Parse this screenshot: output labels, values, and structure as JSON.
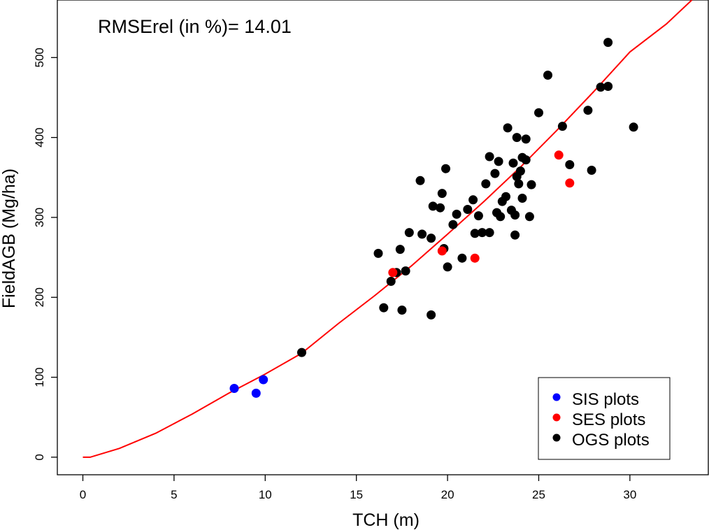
{
  "chart_data": {
    "type": "scatter",
    "xlabel": "TCH (m)",
    "ylabel": "FieldAGB (Mg/ha)",
    "annotation": "RMSErel (in %)= 14.01",
    "xlim": [
      -1.4,
      34.3
    ],
    "ylim": [
      -22,
      572
    ],
    "xticks": [
      0,
      5,
      10,
      15,
      20,
      25,
      30
    ],
    "yticks": [
      0,
      100,
      200,
      300,
      400,
      500
    ],
    "grid": false,
    "legend_position": "bottom-right",
    "series": [
      {
        "name": "SIS plots",
        "color": "#0000ff",
        "points": [
          [
            8.3,
            86
          ],
          [
            9.5,
            80
          ],
          [
            9.9,
            97
          ]
        ]
      },
      {
        "name": "SES plots",
        "color": "#ff0000",
        "points": [
          [
            17.0,
            231
          ],
          [
            19.7,
            258
          ],
          [
            21.5,
            249
          ],
          [
            26.1,
            378
          ],
          [
            26.7,
            343
          ]
        ]
      },
      {
        "name": "OGS plots",
        "color": "#000000",
        "points": [
          [
            12.0,
            131
          ],
          [
            16.2,
            255
          ],
          [
            16.5,
            187
          ],
          [
            16.9,
            220
          ],
          [
            17.2,
            231
          ],
          [
            17.4,
            260
          ],
          [
            17.5,
            184
          ],
          [
            17.7,
            233
          ],
          [
            17.9,
            281
          ],
          [
            18.5,
            346
          ],
          [
            18.6,
            279
          ],
          [
            19.1,
            274
          ],
          [
            19.1,
            178
          ],
          [
            19.2,
            314
          ],
          [
            19.6,
            312
          ],
          [
            19.7,
            330
          ],
          [
            19.8,
            261
          ],
          [
            19.9,
            361
          ],
          [
            20.0,
            238
          ],
          [
            20.3,
            291
          ],
          [
            20.5,
            304
          ],
          [
            20.8,
            249
          ],
          [
            21.1,
            310
          ],
          [
            21.4,
            322
          ],
          [
            21.5,
            280
          ],
          [
            21.7,
            302
          ],
          [
            21.9,
            281
          ],
          [
            22.1,
            342
          ],
          [
            22.3,
            281
          ],
          [
            22.3,
            376
          ],
          [
            22.6,
            355
          ],
          [
            22.7,
            306
          ],
          [
            22.8,
            370
          ],
          [
            22.9,
            301
          ],
          [
            23.0,
            320
          ],
          [
            23.2,
            326
          ],
          [
            23.3,
            412
          ],
          [
            23.5,
            309
          ],
          [
            23.6,
            368
          ],
          [
            23.7,
            303
          ],
          [
            23.7,
            278
          ],
          [
            23.8,
            400
          ],
          [
            23.8,
            351
          ],
          [
            23.9,
            342
          ],
          [
            24.0,
            358
          ],
          [
            24.1,
            375
          ],
          [
            24.1,
            324
          ],
          [
            24.3,
            398
          ],
          [
            24.3,
            372
          ],
          [
            24.5,
            301
          ],
          [
            24.6,
            341
          ],
          [
            25.0,
            431
          ],
          [
            25.5,
            478
          ],
          [
            26.3,
            414
          ],
          [
            26.7,
            366
          ],
          [
            27.7,
            434
          ],
          [
            27.9,
            359
          ],
          [
            28.4,
            463
          ],
          [
            28.8,
            519
          ],
          [
            28.8,
            464
          ],
          [
            30.2,
            413
          ]
        ]
      }
    ],
    "fit_line": {
      "color": "#ff0000",
      "points": [
        [
          0,
          0
        ],
        [
          0.4,
          0
        ],
        [
          2,
          11
        ],
        [
          4,
          30
        ],
        [
          6,
          54
        ],
        [
          8,
          80
        ],
        [
          10,
          104
        ],
        [
          12,
          130
        ],
        [
          14,
          167
        ],
        [
          16,
          202
        ],
        [
          18,
          239
        ],
        [
          20,
          279
        ],
        [
          22,
          320
        ],
        [
          24,
          363
        ],
        [
          26,
          409
        ],
        [
          28,
          457
        ],
        [
          30,
          507
        ],
        [
          32,
          542
        ],
        [
          33.4,
          572
        ]
      ]
    }
  }
}
